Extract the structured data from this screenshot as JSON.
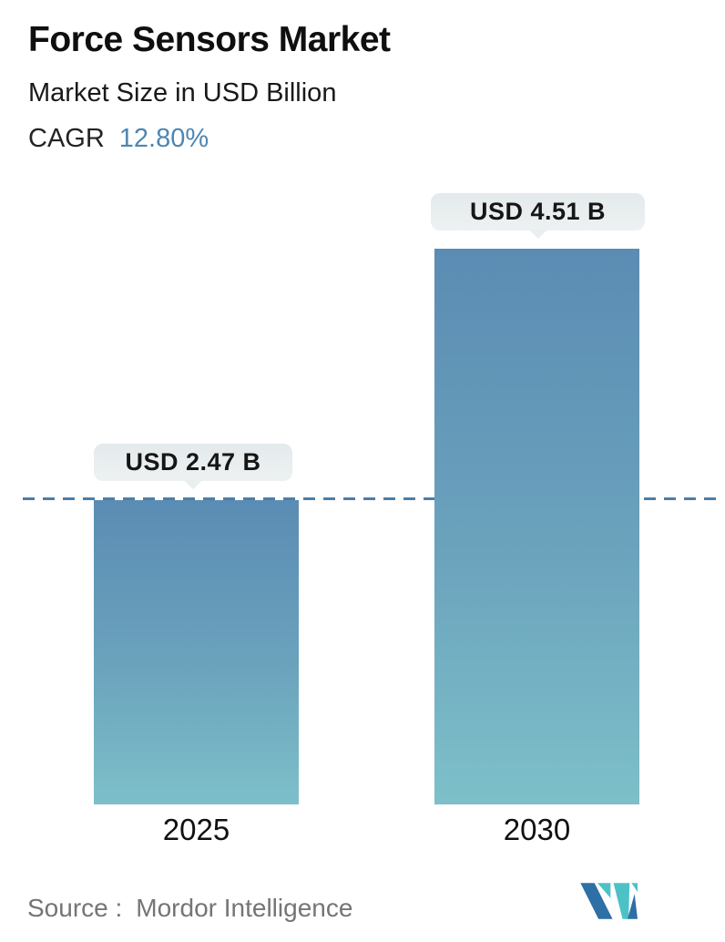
{
  "header": {
    "title": "Force Sensors Market",
    "subtitle": "Market Size in USD Billion",
    "cagr_label": "CAGR",
    "cagr_value": "12.80%"
  },
  "chart_data": {
    "type": "bar",
    "title": "Force Sensors Market",
    "subtitle": "Market Size in USD Billion",
    "cagr": "12.80%",
    "unit": "USD Billion",
    "categories": [
      "2025",
      "2030"
    ],
    "values": [
      2.47,
      4.51
    ],
    "value_labels": [
      "USD 2.47 B",
      "USD 4.51 B"
    ],
    "ylabel": "",
    "xlabel": "",
    "ylim": [
      0,
      4.51
    ],
    "grid": false,
    "legend": false,
    "reference_line": {
      "style": "dashed",
      "at_value": 2.47,
      "color": "#4c7ea8",
      "note": "horizontal dashed line level with 2025 bar top"
    },
    "bar_style": {
      "gradient_top": "#5b8cb3",
      "gradient_bottom": "#7dc0c9",
      "badge_background": "#e9eeef",
      "badge_text_color": "#161616"
    }
  },
  "footer": {
    "source_label": "Source :",
    "source_value": "Mordor Intelligence",
    "logo_name": "mordor-intelligence-logo"
  },
  "colors": {
    "background": "#ffffff",
    "title_text": "#0f0f0f",
    "accent_blue": "#4e86b2",
    "source_gray": "#757575",
    "logo_blue": "#2e6fa6",
    "logo_teal": "#4cc2c6"
  }
}
